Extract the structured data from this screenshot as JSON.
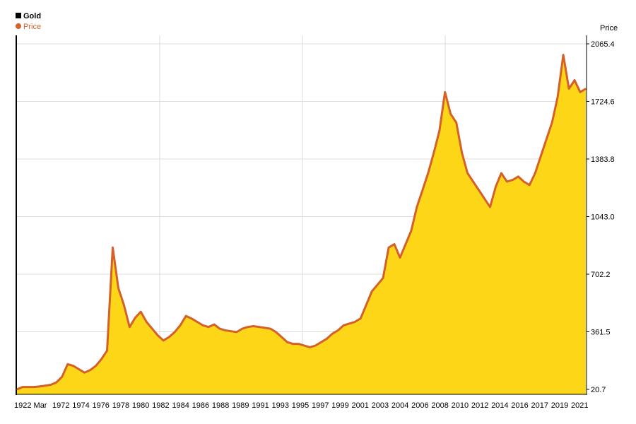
{
  "legend": {
    "title": "Gold",
    "series_label": "Price"
  },
  "colors": {
    "area_fill": "#fcd617",
    "line": "#d4602a",
    "grid": "#dcdcdc",
    "axis": "#000000",
    "legend_title_swatch": "#000000"
  },
  "chart_data": {
    "type": "area",
    "title": "Gold",
    "ylabel": "Price",
    "legend_position": "top-left",
    "grid": true,
    "ylim": [
      20.7,
      2065.4
    ],
    "yticks": [
      20.7,
      361.5,
      702.2,
      1043.0,
      1383.8,
      1724.6,
      2065.4
    ],
    "ytick_labels": [
      "20.7",
      "361.5",
      "702.2",
      "1043.0",
      "1383.8",
      "1724.6",
      "2065.4"
    ],
    "xtick_labels": [
      "1922 Mar",
      "1972",
      "1974",
      "1976",
      "1978",
      "1980",
      "1982",
      "1984",
      "1986",
      "1988",
      "1989",
      "1991",
      "1993",
      "1995",
      "1997",
      "1999",
      "2001",
      "2003",
      "2004",
      "2006",
      "2008",
      "2010",
      "2012",
      "2014",
      "2016",
      "2017",
      "2019",
      "2021"
    ],
    "series": [
      {
        "name": "Price",
        "values": [
          20.7,
          35,
          35,
          35,
          38,
          43,
          48,
          62,
          95,
          170,
          160,
          140,
          120,
          135,
          160,
          200,
          250,
          860,
          620,
          520,
          390,
          445,
          480,
          420,
          380,
          340,
          310,
          330,
          360,
          400,
          455,
          440,
          420,
          400,
          390,
          405,
          380,
          370,
          365,
          360,
          380,
          390,
          395,
          390,
          385,
          380,
          360,
          330,
          300,
          290,
          290,
          280,
          270,
          280,
          300,
          320,
          350,
          370,
          400,
          410,
          420,
          440,
          520,
          600,
          640,
          680,
          860,
          880,
          800,
          880,
          960,
          1100,
          1200,
          1300,
          1420,
          1550,
          1780,
          1650,
          1600,
          1420,
          1300,
          1250,
          1200,
          1150,
          1100,
          1220,
          1300,
          1250,
          1260,
          1280,
          1250,
          1230,
          1300,
          1400,
          1500,
          1600,
          1750,
          2000,
          1800,
          1850,
          1780,
          1800
        ]
      }
    ]
  }
}
